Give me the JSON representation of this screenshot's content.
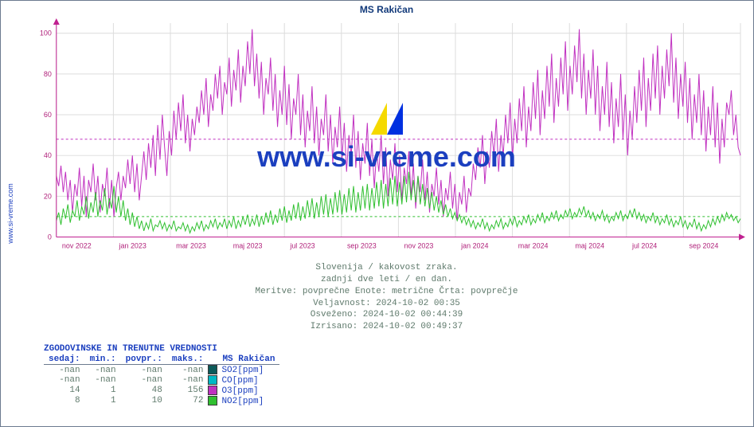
{
  "site_label": "www.si-vreme.com",
  "title": "MS Rakičan",
  "watermark": "www.si-vreme.com",
  "chart": {
    "type": "line",
    "background_color": "#ffffff",
    "grid_color": "#dcdcdc",
    "axis_color": "#c02090",
    "ylim": [
      0,
      105
    ],
    "yticks": [
      0,
      20,
      40,
      60,
      80,
      100
    ],
    "xlabels": [
      "nov 2022",
      "jan 2023",
      "mar 2023",
      "maj 2023",
      "jul 2023",
      "sep 2023",
      "nov 2023",
      "jan 2024",
      "mar 2024",
      "maj 2024",
      "jul 2024",
      "sep 2024"
    ],
    "ref_lines": [
      {
        "y": 48,
        "color": "#c030c0",
        "dash": "3,3"
      },
      {
        "y": 10,
        "color": "#30c030",
        "dash": "3,3"
      }
    ],
    "series": [
      {
        "name": "O3",
        "color": "#c030c0",
        "line_width": 1,
        "y": [
          30,
          25,
          35,
          22,
          32,
          18,
          28,
          12,
          26,
          20,
          34,
          15,
          30,
          10,
          28,
          22,
          36,
          18,
          30,
          12,
          26,
          20,
          34,
          14,
          28,
          10,
          24,
          32,
          18,
          30,
          24,
          38,
          26,
          40,
          22,
          36,
          18,
          30,
          42,
          28,
          46,
          34,
          50,
          30,
          55,
          38,
          60,
          44,
          30,
          52,
          40,
          62,
          48,
          66,
          52,
          70,
          46,
          60,
          42,
          58,
          50,
          64,
          56,
          72,
          60,
          78,
          54,
          70,
          62,
          80,
          68,
          84,
          60,
          76,
          70,
          88,
          64,
          82,
          72,
          92,
          66,
          84,
          74,
          96,
          80,
          102,
          74,
          90,
          68,
          86,
          60,
          78,
          70,
          88,
          62,
          80,
          54,
          72,
          60,
          84,
          55,
          75,
          48,
          68,
          60,
          80,
          50,
          70,
          44,
          62,
          52,
          74,
          46,
          64,
          40,
          58,
          50,
          70,
          42,
          60,
          36,
          54,
          44,
          64,
          38,
          56,
          32,
          50,
          40,
          60,
          34,
          52,
          28,
          46,
          36,
          56,
          30,
          48,
          24,
          42,
          32,
          50,
          26,
          44,
          20,
          38,
          28,
          46,
          22,
          40,
          18,
          34,
          26,
          42,
          20,
          36,
          14,
          30,
          22,
          38,
          18,
          32,
          12,
          26,
          20,
          34,
          16,
          28,
          10,
          24,
          18,
          32,
          14,
          26,
          8,
          22,
          16,
          30,
          12,
          24,
          20,
          36,
          28,
          44,
          34,
          50,
          26,
          42,
          34,
          52,
          40,
          58,
          32,
          50,
          40,
          60,
          46,
          66,
          38,
          58,
          46,
          68,
          52,
          74,
          44,
          64,
          52,
          76,
          58,
          82,
          50,
          72,
          58,
          84,
          64,
          90,
          56,
          78,
          64,
          88,
          70,
          96,
          62,
          84,
          70,
          94,
          76,
          102,
          68,
          90,
          60,
          82,
          68,
          92,
          60,
          84,
          52,
          74,
          60,
          86,
          54,
          76,
          46,
          68,
          54,
          80,
          48,
          70,
          40,
          62,
          48,
          74,
          56,
          82,
          62,
          88,
          54,
          78,
          62,
          90,
          68,
          94,
          60,
          84,
          68,
          92,
          74,
          100,
          66,
          88,
          58,
          80,
          64,
          86,
          56,
          78,
          48,
          70,
          56,
          80,
          50,
          72,
          42,
          64,
          50,
          74,
          44,
          66,
          36,
          58,
          44,
          66,
          60,
          72,
          50,
          60,
          44,
          40
        ]
      },
      {
        "name": "NO2",
        "color": "#30c030",
        "line_width": 1,
        "y": [
          8,
          12,
          6,
          14,
          9,
          16,
          7,
          13,
          10,
          18,
          8,
          15,
          11,
          20,
          9,
          17,
          12,
          22,
          10,
          18,
          13,
          24,
          11,
          19,
          14,
          25,
          12,
          20,
          10,
          18,
          8,
          14,
          6,
          12,
          5,
          10,
          4,
          8,
          3,
          7,
          4,
          9,
          3,
          6,
          5,
          8,
          4,
          7,
          3,
          6,
          4,
          8,
          3,
          5,
          4,
          7,
          3,
          6,
          2,
          5,
          3,
          7,
          4,
          8,
          3,
          6,
          4,
          8,
          5,
          9,
          4,
          7,
          5,
          9,
          4,
          8,
          5,
          10,
          4,
          8,
          5,
          10,
          6,
          11,
          5,
          9,
          6,
          11,
          5,
          10,
          6,
          12,
          7,
          13,
          6,
          11,
          7,
          14,
          8,
          15,
          7,
          13,
          8,
          16,
          9,
          17,
          8,
          15,
          9,
          18,
          10,
          19,
          9,
          17,
          10,
          20,
          11,
          21,
          10,
          19,
          11,
          22,
          12,
          23,
          11,
          21,
          12,
          24,
          13,
          25,
          12,
          22,
          13,
          25,
          14,
          26,
          13,
          24,
          14,
          27,
          15,
          28,
          14,
          26,
          15,
          29,
          16,
          30,
          15,
          27,
          16,
          30,
          17,
          32,
          18,
          28,
          17,
          30,
          16,
          26,
          15,
          24,
          14,
          22,
          13,
          20,
          12,
          18,
          11,
          16,
          10,
          14,
          9,
          12,
          8,
          11,
          7,
          10,
          6,
          9,
          5,
          8,
          4,
          7,
          5,
          9,
          4,
          7,
          3,
          6,
          4,
          8,
          5,
          9,
          4,
          7,
          5,
          9,
          6,
          10,
          5,
          8,
          6,
          10,
          7,
          11,
          6,
          9,
          7,
          11,
          8,
          12,
          7,
          10,
          8,
          12,
          9,
          13,
          8,
          11,
          9,
          13,
          10,
          14,
          9,
          12,
          10,
          14,
          11,
          15,
          10,
          13,
          9,
          12,
          8,
          11,
          9,
          13,
          8,
          11,
          7,
          10,
          8,
          12,
          9,
          13,
          8,
          11,
          9,
          13,
          10,
          14,
          9,
          12,
          8,
          11,
          7,
          10,
          8,
          12,
          7,
          10,
          6,
          9,
          7,
          11,
          6,
          9,
          5,
          8,
          6,
          10,
          5,
          8,
          4,
          7,
          5,
          9,
          4,
          7,
          3,
          6,
          4,
          8,
          5,
          9,
          6,
          10,
          7,
          11,
          8,
          12,
          9,
          11,
          8,
          10,
          7,
          9
        ]
      }
    ]
  },
  "meta": {
    "line1": "Slovenija / kakovost zraka.",
    "line2": "zadnji dve leti / en dan.",
    "line3": "Meritve: povprečne  Enote: metrične  Črta: povprečje",
    "line4": "Veljavnost: 2024-10-02 00:35",
    "line5": "Osveženo: 2024-10-02 00:44:39",
    "line6": "Izrisano: 2024-10-02 00:49:37"
  },
  "table": {
    "title": "ZGODOVINSKE IN TRENUTNE VREDNOSTI",
    "station_header": "MS Rakičan",
    "columns": [
      "sedaj:",
      "min.:",
      "povpr.:",
      "maks.:"
    ],
    "rows": [
      {
        "sedaj": "-nan",
        "min": "-nan",
        "povpr": "-nan",
        "maks": "-nan",
        "swatch": "#0b5a5a",
        "name": "SO2[ppm]"
      },
      {
        "sedaj": "-nan",
        "min": "-nan",
        "povpr": "-nan",
        "maks": "-nan",
        "swatch": "#00b8c4",
        "name": "CO[ppm]"
      },
      {
        "sedaj": "14",
        "min": "1",
        "povpr": "48",
        "maks": "156",
        "swatch": "#c030c0",
        "name": "O3[ppm]"
      },
      {
        "sedaj": "8",
        "min": "1",
        "povpr": "10",
        "maks": "72",
        "swatch": "#30c030",
        "name": "NO2[ppm]"
      }
    ]
  },
  "logo_colors": {
    "yellow": "#f5d900",
    "blue": "#0030e0"
  }
}
